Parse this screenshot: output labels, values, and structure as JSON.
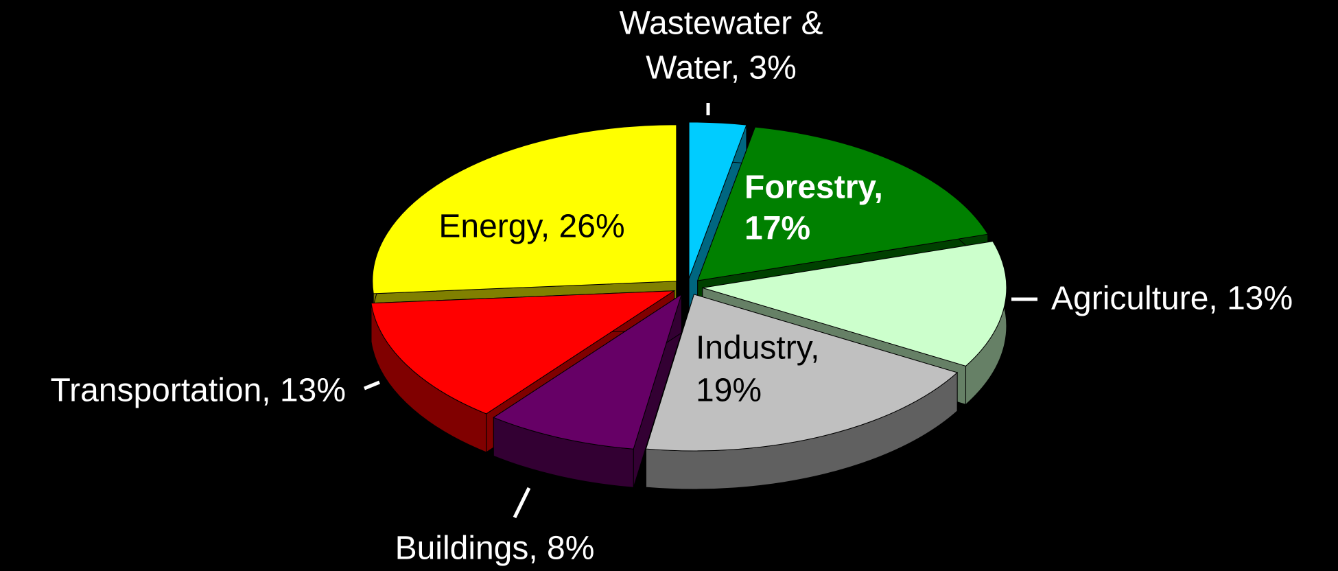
{
  "chart_data": {
    "type": "pie",
    "categories": [
      [
        "Wastewater &",
        "Water, 3%"
      ],
      [
        "Forestry,",
        "17%"
      ],
      [
        "Agriculture, 13%"
      ],
      [
        "Industry,",
        "19%"
      ],
      [
        "Buildings, 8%"
      ],
      [
        "Transportation, 13%"
      ],
      [
        "Energy, 26%"
      ]
    ],
    "values": [
      3,
      17,
      13,
      19,
      8,
      13,
      26
    ],
    "colors": [
      "#00ccff",
      "#008000",
      "#ccffcc",
      "#c0c0c0",
      "#660066",
      "#ff0000",
      "#ffff00"
    ]
  }
}
